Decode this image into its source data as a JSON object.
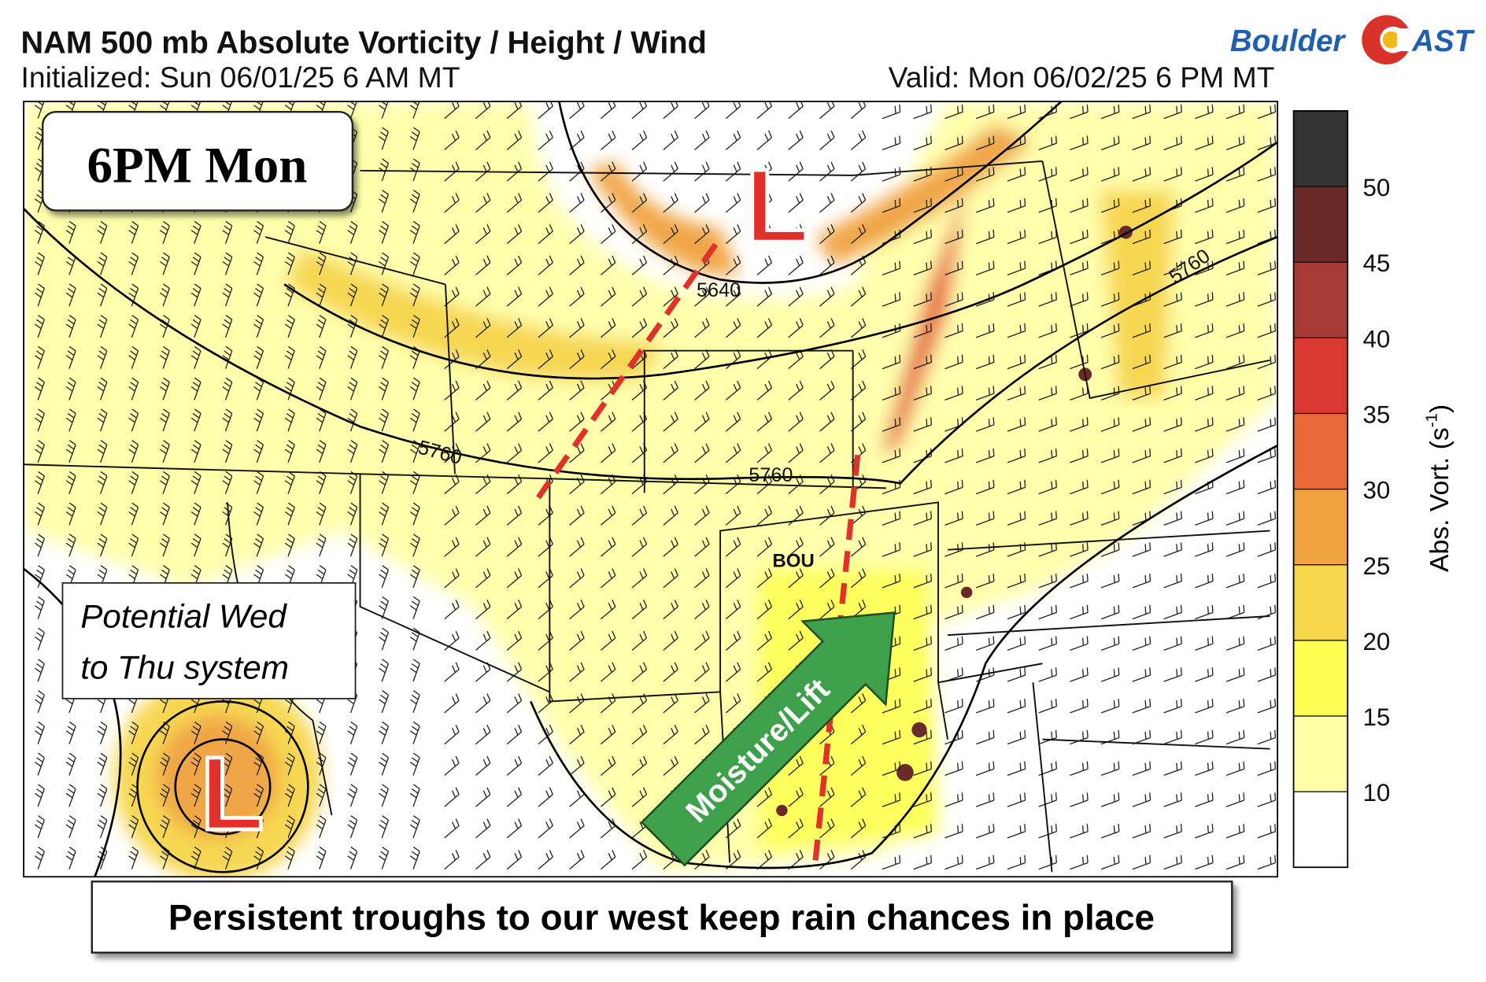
{
  "header": {
    "title": "NAM 500 mb Absolute Vorticity / Height / Wind",
    "initialized": "Initialized: Sun 06/01/25 6 AM MT",
    "valid": "Valid: Mon 06/02/25 6 PM MT",
    "logo_left": "Boulder",
    "logo_right": "AST"
  },
  "map": {
    "badge": "6PM Mon",
    "note_line1": "Potential Wed",
    "note_line2": "to Thu system",
    "low_north": "L",
    "low_southwest": "L",
    "contour_5640": "5640",
    "contour_5760_west": "5760",
    "contour_5760_center": "5760",
    "contour_5760_east": "5760",
    "station": "BOU",
    "arrow_label": "Moisture/Lift"
  },
  "colorbar": {
    "ticks": [
      10,
      15,
      20,
      25,
      30,
      35,
      40,
      45,
      50
    ],
    "colors": [
      "#ffffff",
      "#ffffa8",
      "#ffff55",
      "#f7d54a",
      "#f0a23e",
      "#e8683a",
      "#d8382f",
      "#a63a35",
      "#6a2a28",
      "#333333"
    ],
    "label": "Abs. Vort. (s",
    "label_exponent": "-1",
    "label_end": ")"
  },
  "caption": "Persistent troughs to our west keep rain chances in place"
}
